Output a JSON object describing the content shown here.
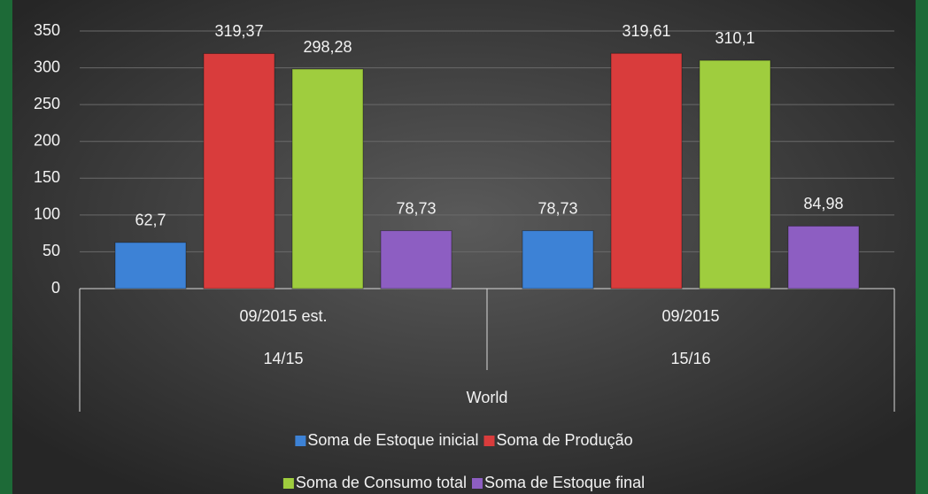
{
  "chart_data": {
    "type": "bar",
    "categories": [
      "09/2015 est.",
      "09/2015"
    ],
    "subcategories": [
      "14/15",
      "15/16"
    ],
    "group": "World",
    "series": [
      {
        "name": "Soma de Estoque inicial",
        "color": "#3d82d6",
        "values": [
          62.7,
          78.73
        ],
        "value_labels": [
          "62,7",
          "78,73"
        ]
      },
      {
        "name": "Soma de Produção",
        "color": "#d93c3c",
        "values": [
          319.37,
          319.61
        ],
        "value_labels": [
          "319,37",
          "319,61"
        ]
      },
      {
        "name": "Soma de Consumo total",
        "color": "#9fcd3e",
        "values": [
          298.28,
          310.1
        ],
        "value_labels": [
          "298,28",
          "310,1"
        ]
      },
      {
        "name": "Soma de Estoque final",
        "color": "#8d5ec2",
        "values": [
          78.73,
          84.98
        ],
        "value_labels": [
          "78,73",
          "84,98"
        ]
      }
    ],
    "ylim": [
      0,
      350
    ],
    "yticks": [
      0,
      50,
      100,
      150,
      200,
      250,
      300,
      350
    ],
    "grid": true,
    "legend": "bottom"
  }
}
